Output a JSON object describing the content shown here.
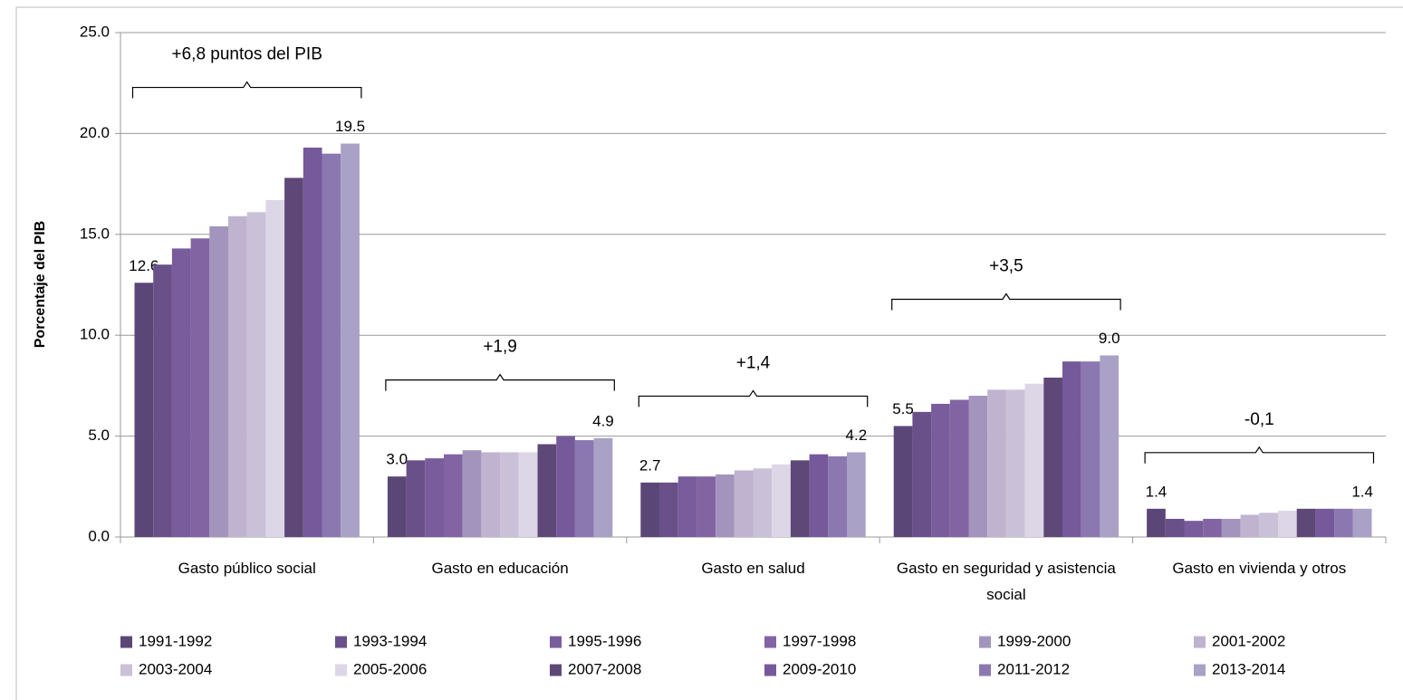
{
  "chart_data": {
    "type": "bar",
    "y_label": "Porcentaje del PIB",
    "categories": [
      "Gasto público social",
      "Gasto en educación",
      "Gasto en salud",
      "Gasto en seguridad y asistencia social",
      "Gasto en vivienda y otros"
    ],
    "series": [
      {
        "name": "1991-1992",
        "color": "#5b4777",
        "values": [
          12.6,
          3.0,
          2.7,
          5.5,
          1.4
        ],
        "value_labels": [
          "12.6",
          "3.0",
          "2.7",
          "5.5",
          "1.4"
        ]
      },
      {
        "name": "1993-1994",
        "color": "#6a5089",
        "values": [
          13.5,
          3.8,
          2.7,
          6.2,
          0.9
        ]
      },
      {
        "name": "1995-1996",
        "color": "#785c9b",
        "values": [
          14.3,
          3.9,
          3.0,
          6.6,
          0.8
        ]
      },
      {
        "name": "1997-1998",
        "color": "#8264a3",
        "values": [
          14.8,
          4.1,
          3.0,
          6.8,
          0.9
        ]
      },
      {
        "name": "1999-2000",
        "color": "#a394bd",
        "values": [
          15.4,
          4.3,
          3.1,
          7.0,
          0.9
        ]
      },
      {
        "name": "2001-2002",
        "color": "#bfb3cf",
        "values": [
          15.9,
          4.2,
          3.3,
          7.3,
          1.1
        ]
      },
      {
        "name": "2003-2004",
        "color": "#cac1d9",
        "values": [
          16.1,
          4.2,
          3.4,
          7.3,
          1.2
        ]
      },
      {
        "name": "2005-2006",
        "color": "#dcd6e7",
        "values": [
          16.7,
          4.2,
          3.6,
          7.6,
          1.3
        ]
      },
      {
        "name": "2007-2008",
        "color": "#5e4878",
        "values": [
          17.8,
          4.6,
          3.8,
          7.9,
          1.4
        ]
      },
      {
        "name": "2009-2010",
        "color": "#76599a",
        "values": [
          19.3,
          5.0,
          4.1,
          8.7,
          1.4
        ]
      },
      {
        "name": "2011-2012",
        "color": "#8b78b0",
        "values": [
          19.0,
          4.8,
          4.0,
          8.7,
          1.4
        ]
      },
      {
        "name": "2013-2014",
        "color": "#aaa1c6",
        "values": [
          19.5,
          4.9,
          4.2,
          9.0,
          1.4
        ],
        "value_labels": [
          "19.5",
          "4.9",
          "4.2",
          "9.0",
          "1.4"
        ]
      }
    ],
    "annotations": [
      "+6,8 puntos del PIB",
      "+1,9",
      "+1,4",
      "+3,5",
      "-0,1"
    ],
    "ylim": [
      0,
      25
    ],
    "yticks": [
      {
        "value": 0,
        "label": "0.0"
      },
      {
        "value": 5,
        "label": "5.0"
      },
      {
        "value": 10,
        "label": "10.0"
      },
      {
        "value": 15,
        "label": "15.0"
      },
      {
        "value": 20,
        "label": "20.0"
      },
      {
        "value": 25,
        "label": "25.0"
      }
    ],
    "grid": true,
    "legend": "bottom"
  }
}
